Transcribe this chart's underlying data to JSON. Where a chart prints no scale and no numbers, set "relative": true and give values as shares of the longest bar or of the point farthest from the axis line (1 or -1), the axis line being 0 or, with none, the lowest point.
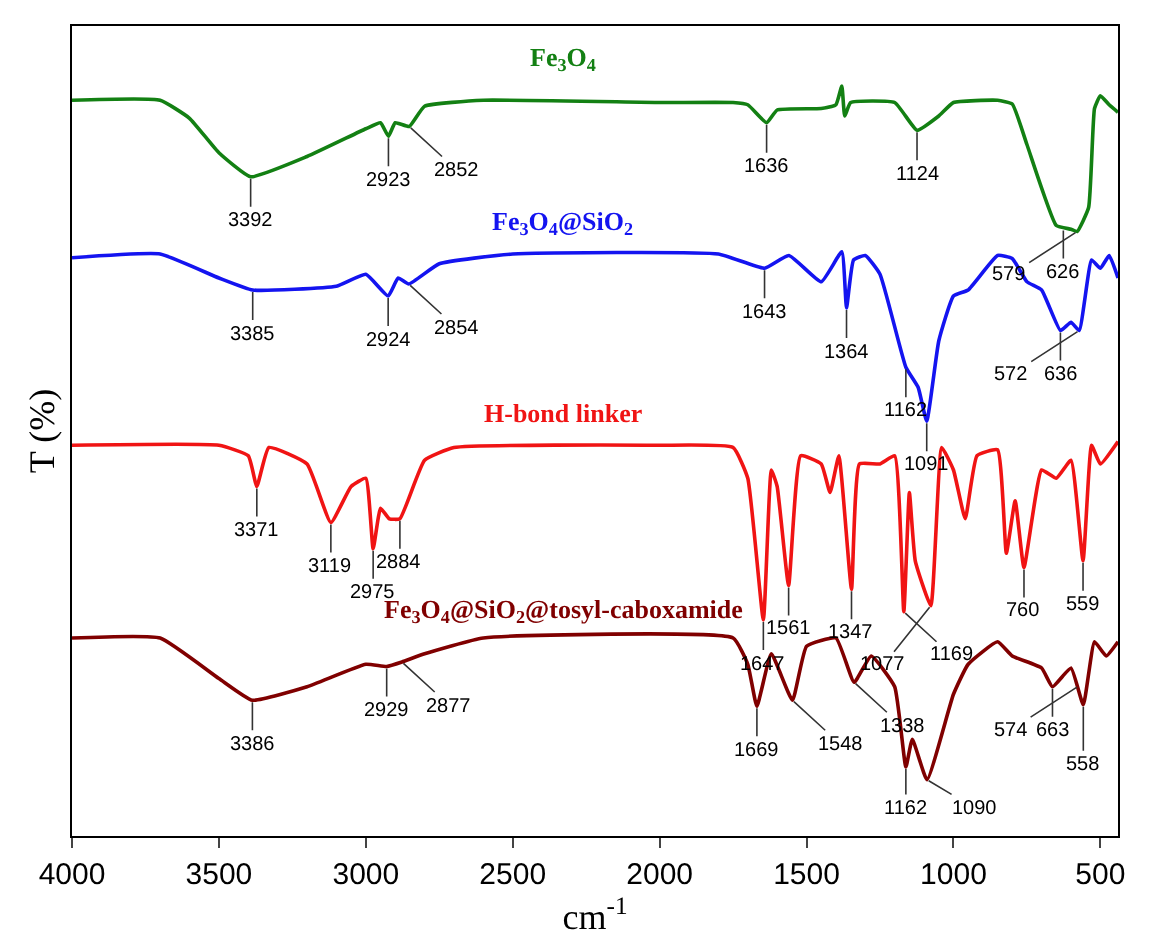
{
  "chart_data": {
    "type": "line",
    "relative": true,
    "xlabel": "cm$^{-1}$",
    "ylabel": "T (%)",
    "xlim": [
      4000,
      440
    ],
    "xticks": [
      4000,
      3500,
      3000,
      2500,
      2000,
      1500,
      1000,
      500
    ],
    "legend": false,
    "marker": "none",
    "line_style": "solid",
    "series": [
      {
        "name": "Fe$_{3}$O$_{4}$",
        "color": "#138013",
        "x": [
          4000,
          3700,
          3600,
          3500,
          3392,
          3200,
          3000,
          2950,
          2923,
          2900,
          2852,
          2800,
          2600,
          2000,
          1750,
          1700,
          1636,
          1600,
          1450,
          1400,
          1380,
          1370,
          1350,
          1200,
          1124,
          1050,
          1000,
          850,
          800,
          750,
          650,
          600,
          579,
          540,
          520,
          500,
          470,
          440
        ],
        "values": [
          0.981,
          0.981,
          0.957,
          0.911,
          0.879,
          0.906,
          0.943,
          0.951,
          0.933,
          0.951,
          0.946,
          0.973,
          0.981,
          0.978,
          0.978,
          0.975,
          0.951,
          0.968,
          0.97,
          0.975,
          1.0,
          0.96,
          0.978,
          0.978,
          0.941,
          0.96,
          0.978,
          0.981,
          0.976,
          0.922,
          0.814,
          0.809,
          0.806,
          0.838,
          0.97,
          0.987,
          0.975,
          0.965
        ]
      },
      {
        "name": "Fe$_{3}$O$_{4}$@SiO$_{2}$",
        "color": "#1414f0",
        "x": [
          4000,
          3700,
          3500,
          3385,
          3100,
          3000,
          2924,
          2890,
          2854,
          2750,
          2500,
          1800,
          1643,
          1560,
          1450,
          1380,
          1364,
          1340,
          1300,
          1250,
          1162,
          1120,
          1091,
          1050,
          1000,
          950,
          850,
          800,
          750,
          700,
          636,
          600,
          572,
          530,
          500,
          470,
          440
        ],
        "values": [
          0.771,
          0.776,
          0.744,
          0.728,
          0.733,
          0.749,
          0.72,
          0.744,
          0.736,
          0.763,
          0.776,
          0.776,
          0.757,
          0.774,
          0.739,
          0.779,
          0.704,
          0.768,
          0.774,
          0.749,
          0.625,
          0.598,
          0.553,
          0.66,
          0.72,
          0.728,
          0.774,
          0.77,
          0.739,
          0.728,
          0.674,
          0.685,
          0.674,
          0.768,
          0.757,
          0.774,
          0.744
        ]
      },
      {
        "name": "H-bond linker",
        "color": "#f01414",
        "x": [
          4000,
          3500,
          3400,
          3371,
          3330,
          3200,
          3119,
          3050,
          3000,
          2975,
          2950,
          2920,
          2884,
          2800,
          2700,
          2000,
          1750,
          1700,
          1647,
          1620,
          1600,
          1561,
          1520,
          1450,
          1420,
          1390,
          1347,
          1320,
          1250,
          1200,
          1169,
          1150,
          1130,
          1077,
          1040,
          1000,
          960,
          920,
          850,
          820,
          790,
          760,
          700,
          650,
          600,
          559,
          530,
          500,
          440
        ],
        "values": [
          0.521,
          0.521,
          0.507,
          0.466,
          0.518,
          0.496,
          0.418,
          0.466,
          0.477,
          0.383,
          0.437,
          0.423,
          0.423,
          0.501,
          0.518,
          0.521,
          0.518,
          0.477,
          0.288,
          0.488,
          0.466,
          0.334,
          0.507,
          0.496,
          0.458,
          0.507,
          0.329,
          0.496,
          0.496,
          0.507,
          0.299,
          0.458,
          0.367,
          0.307,
          0.518,
          0.488,
          0.423,
          0.507,
          0.515,
          0.377,
          0.447,
          0.358,
          0.488,
          0.477,
          0.501,
          0.367,
          0.521,
          0.496,
          0.526
        ]
      },
      {
        "name": "Fe$_{3}$O$_{4}$@SiO$_{2}$@tosyl-caboxamide",
        "color": "#800000",
        "x": [
          4000,
          3700,
          3500,
          3386,
          3200,
          3000,
          2929,
          2877,
          2800,
          2600,
          1750,
          1700,
          1669,
          1620,
          1548,
          1500,
          1400,
          1338,
          1280,
          1200,
          1162,
          1140,
          1090,
          1000,
          950,
          850,
          800,
          700,
          663,
          600,
          558,
          520,
          480,
          440
        ],
        "values": [
          0.264,
          0.264,
          0.21,
          0.181,
          0.199,
          0.229,
          0.226,
          0.232,
          0.243,
          0.264,
          0.264,
          0.229,
          0.173,
          0.243,
          0.181,
          0.253,
          0.264,
          0.205,
          0.24,
          0.199,
          0.092,
          0.129,
          0.075,
          0.189,
          0.229,
          0.259,
          0.24,
          0.224,
          0.199,
          0.224,
          0.175,
          0.259,
          0.24,
          0.259
        ]
      }
    ],
    "annotations": [
      {
        "text": "3392",
        "x": 3392,
        "y": 0.879
      },
      {
        "text": "2923",
        "x": 2923,
        "y": 0.933
      },
      {
        "text": "2852",
        "x": 2852,
        "y": 0.946
      },
      {
        "text": "1636",
        "x": 1636,
        "y": 0.951
      },
      {
        "text": "1124",
        "x": 1124,
        "y": 0.941
      },
      {
        "text": "626",
        "x": 626,
        "y": 0.81
      },
      {
        "text": "579",
        "x": 579,
        "y": 0.806
      },
      {
        "text": "3385",
        "x": 3385,
        "y": 0.728
      },
      {
        "text": "2924",
        "x": 2924,
        "y": 0.72
      },
      {
        "text": "2854",
        "x": 2854,
        "y": 0.736
      },
      {
        "text": "1643",
        "x": 1643,
        "y": 0.757
      },
      {
        "text": "1364",
        "x": 1364,
        "y": 0.704
      },
      {
        "text": "1162",
        "x": 1162,
        "y": 0.625
      },
      {
        "text": "1091",
        "x": 1091,
        "y": 0.553
      },
      {
        "text": "636",
        "x": 636,
        "y": 0.674
      },
      {
        "text": "572",
        "x": 572,
        "y": 0.674
      },
      {
        "text": "3371",
        "x": 3371,
        "y": 0.466
      },
      {
        "text": "3119",
        "x": 3119,
        "y": 0.418
      },
      {
        "text": "2975",
        "x": 2975,
        "y": 0.383
      },
      {
        "text": "2884",
        "x": 2884,
        "y": 0.423
      },
      {
        "text": "1647",
        "x": 1647,
        "y": 0.288
      },
      {
        "text": "1561",
        "x": 1561,
        "y": 0.334
      },
      {
        "text": "1347",
        "x": 1347,
        "y": 0.329
      },
      {
        "text": "1169",
        "x": 1169,
        "y": 0.299
      },
      {
        "text": "1077",
        "x": 1077,
        "y": 0.307
      },
      {
        "text": "760",
        "x": 760,
        "y": 0.358
      },
      {
        "text": "559",
        "x": 559,
        "y": 0.367
      },
      {
        "text": "3386",
        "x": 3386,
        "y": 0.181
      },
      {
        "text": "2929",
        "x": 2929,
        "y": 0.226
      },
      {
        "text": "2877",
        "x": 2877,
        "y": 0.232
      },
      {
        "text": "1669",
        "x": 1669,
        "y": 0.173
      },
      {
        "text": "1548",
        "x": 1548,
        "y": 0.181
      },
      {
        "text": "1338",
        "x": 1338,
        "y": 0.205
      },
      {
        "text": "1162",
        "x": 1162,
        "y": 0.092
      },
      {
        "text": "1090",
        "x": 1090,
        "y": 0.075
      },
      {
        "text": "663",
        "x": 663,
        "y": 0.199
      },
      {
        "text": "574",
        "x": 574,
        "y": 0.2
      },
      {
        "text": "558",
        "x": 558,
        "y": 0.175
      }
    ]
  }
}
